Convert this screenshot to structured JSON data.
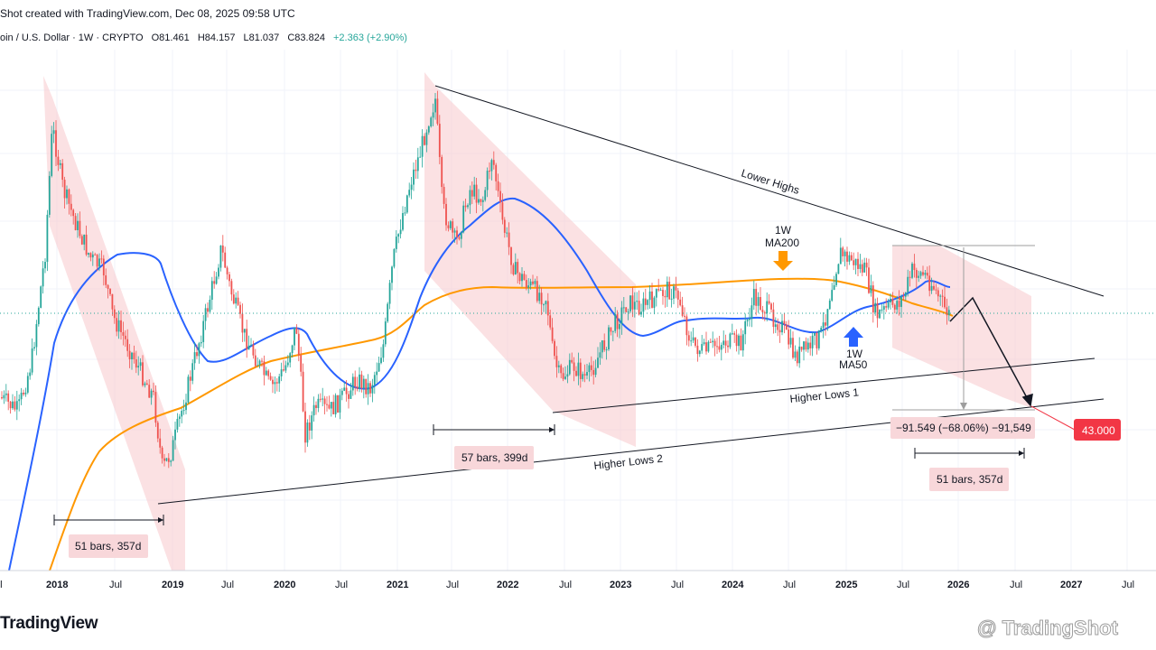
{
  "header": {
    "title": "Shot created with TradingView.com, Dec 08, 2025 09:58 UTC",
    "symbol": "oin / U.S. Dollar · 1W · CRYPTO",
    "open": "O81.461",
    "high": "H84.157",
    "low": "L81.037",
    "close": "C83.824",
    "change": "+2.363 (+2.90%)"
  },
  "colors": {
    "up": "#26a69a",
    "down": "#ef5350",
    "ma50": "#2962ff",
    "ma200": "#ff9800",
    "zone": "#f8c9cc",
    "price_badge": "#f23645"
  },
  "chart_data": {
    "type": "candlestick",
    "x_axis_labels": [
      "ul",
      "2018",
      "Jul",
      "2019",
      "Jul",
      "2020",
      "Jul",
      "2021",
      "Jul",
      "2022",
      "Jul",
      "2023",
      "Jul",
      "2024",
      "Jul",
      "2025",
      "Jul",
      "2026",
      "Jul",
      "2027",
      "Jul"
    ],
    "series": [
      {
        "name": "1W MA50"
      },
      {
        "name": "1W MA200"
      }
    ],
    "annotations": {
      "lower_highs": "Lower Highs",
      "higher_lows_1": "Higher Lows 1",
      "higher_lows_2": "Higher Lows 2",
      "ma200_label_1": "1W",
      "ma200_label_2": "MA200",
      "ma50_label_1": "1W",
      "ma50_label_2": "MA50",
      "range_1": "51 bars, 357d",
      "range_2": "57 bars, 399d",
      "range_3": "51 bars, 357d",
      "measure": "−91.549 (−68.06%) −91,549",
      "target_price": "43.000"
    }
  },
  "footer": {
    "brand": "TradingView",
    "watermark": "@ TradingShot"
  }
}
